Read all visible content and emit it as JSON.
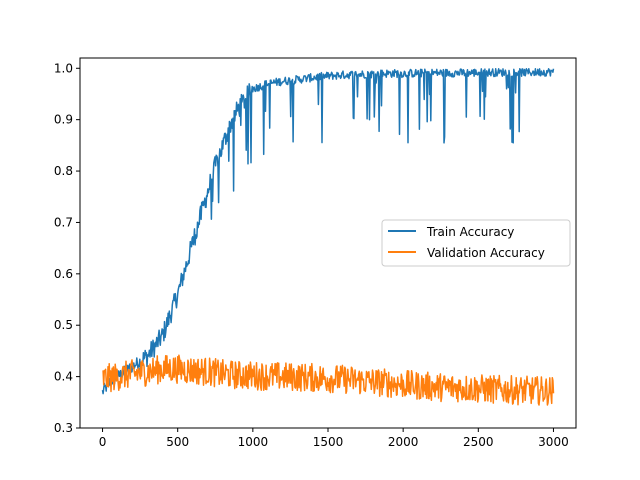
{
  "chart_data": {
    "type": "line",
    "title": "",
    "xlabel": "",
    "ylabel": "",
    "xlim": [
      -150,
      3150
    ],
    "ylim": [
      0.3,
      1.02
    ],
    "xticks": [
      0,
      500,
      1000,
      1500,
      2000,
      2500,
      3000
    ],
    "xtick_labels": [
      "0",
      "500",
      "1000",
      "1500",
      "2000",
      "2500",
      "3000"
    ],
    "yticks": [
      0.3,
      0.4,
      0.5,
      0.6,
      0.7,
      0.8,
      0.9,
      1.0
    ],
    "ytick_labels": [
      "0.3",
      "0.4",
      "0.5",
      "0.6",
      "0.7",
      "0.8",
      "0.9",
      "1.0"
    ],
    "grid": false,
    "legend": "center-right",
    "series": [
      {
        "name": "Train Accuracy",
        "color": "#1f77b4",
        "x": [
          0,
          50,
          100,
          150,
          200,
          250,
          300,
          350,
          400,
          450,
          500,
          550,
          600,
          650,
          700,
          750,
          800,
          850,
          900,
          950,
          1000,
          1100,
          1200,
          1300,
          1400,
          1500,
          1600,
          1700,
          1800,
          1900,
          2000,
          2200,
          2400,
          2600,
          2800,
          3000
        ],
        "y": [
          0.37,
          0.39,
          0.4,
          0.41,
          0.42,
          0.43,
          0.44,
          0.46,
          0.48,
          0.52,
          0.56,
          0.61,
          0.66,
          0.71,
          0.76,
          0.81,
          0.85,
          0.89,
          0.92,
          0.94,
          0.96,
          0.97,
          0.975,
          0.978,
          0.982,
          0.985,
          0.987,
          0.988,
          0.989,
          0.99,
          0.99,
          0.991,
          0.991,
          0.992,
          0.992,
          0.993
        ]
      },
      {
        "name": "Validation Accuracy",
        "color": "#ff7f0e",
        "x": [
          0,
          100,
          200,
          300,
          400,
          500,
          600,
          700,
          800,
          900,
          1000,
          1200,
          1400,
          1600,
          1800,
          2000,
          2200,
          2400,
          2600,
          2800,
          3000
        ],
        "y": [
          0.395,
          0.4,
          0.405,
          0.41,
          0.415,
          0.415,
          0.412,
          0.41,
          0.405,
          0.403,
          0.402,
          0.4,
          0.398,
          0.395,
          0.39,
          0.385,
          0.38,
          0.378,
          0.375,
          0.373,
          0.372
        ]
      }
    ]
  }
}
